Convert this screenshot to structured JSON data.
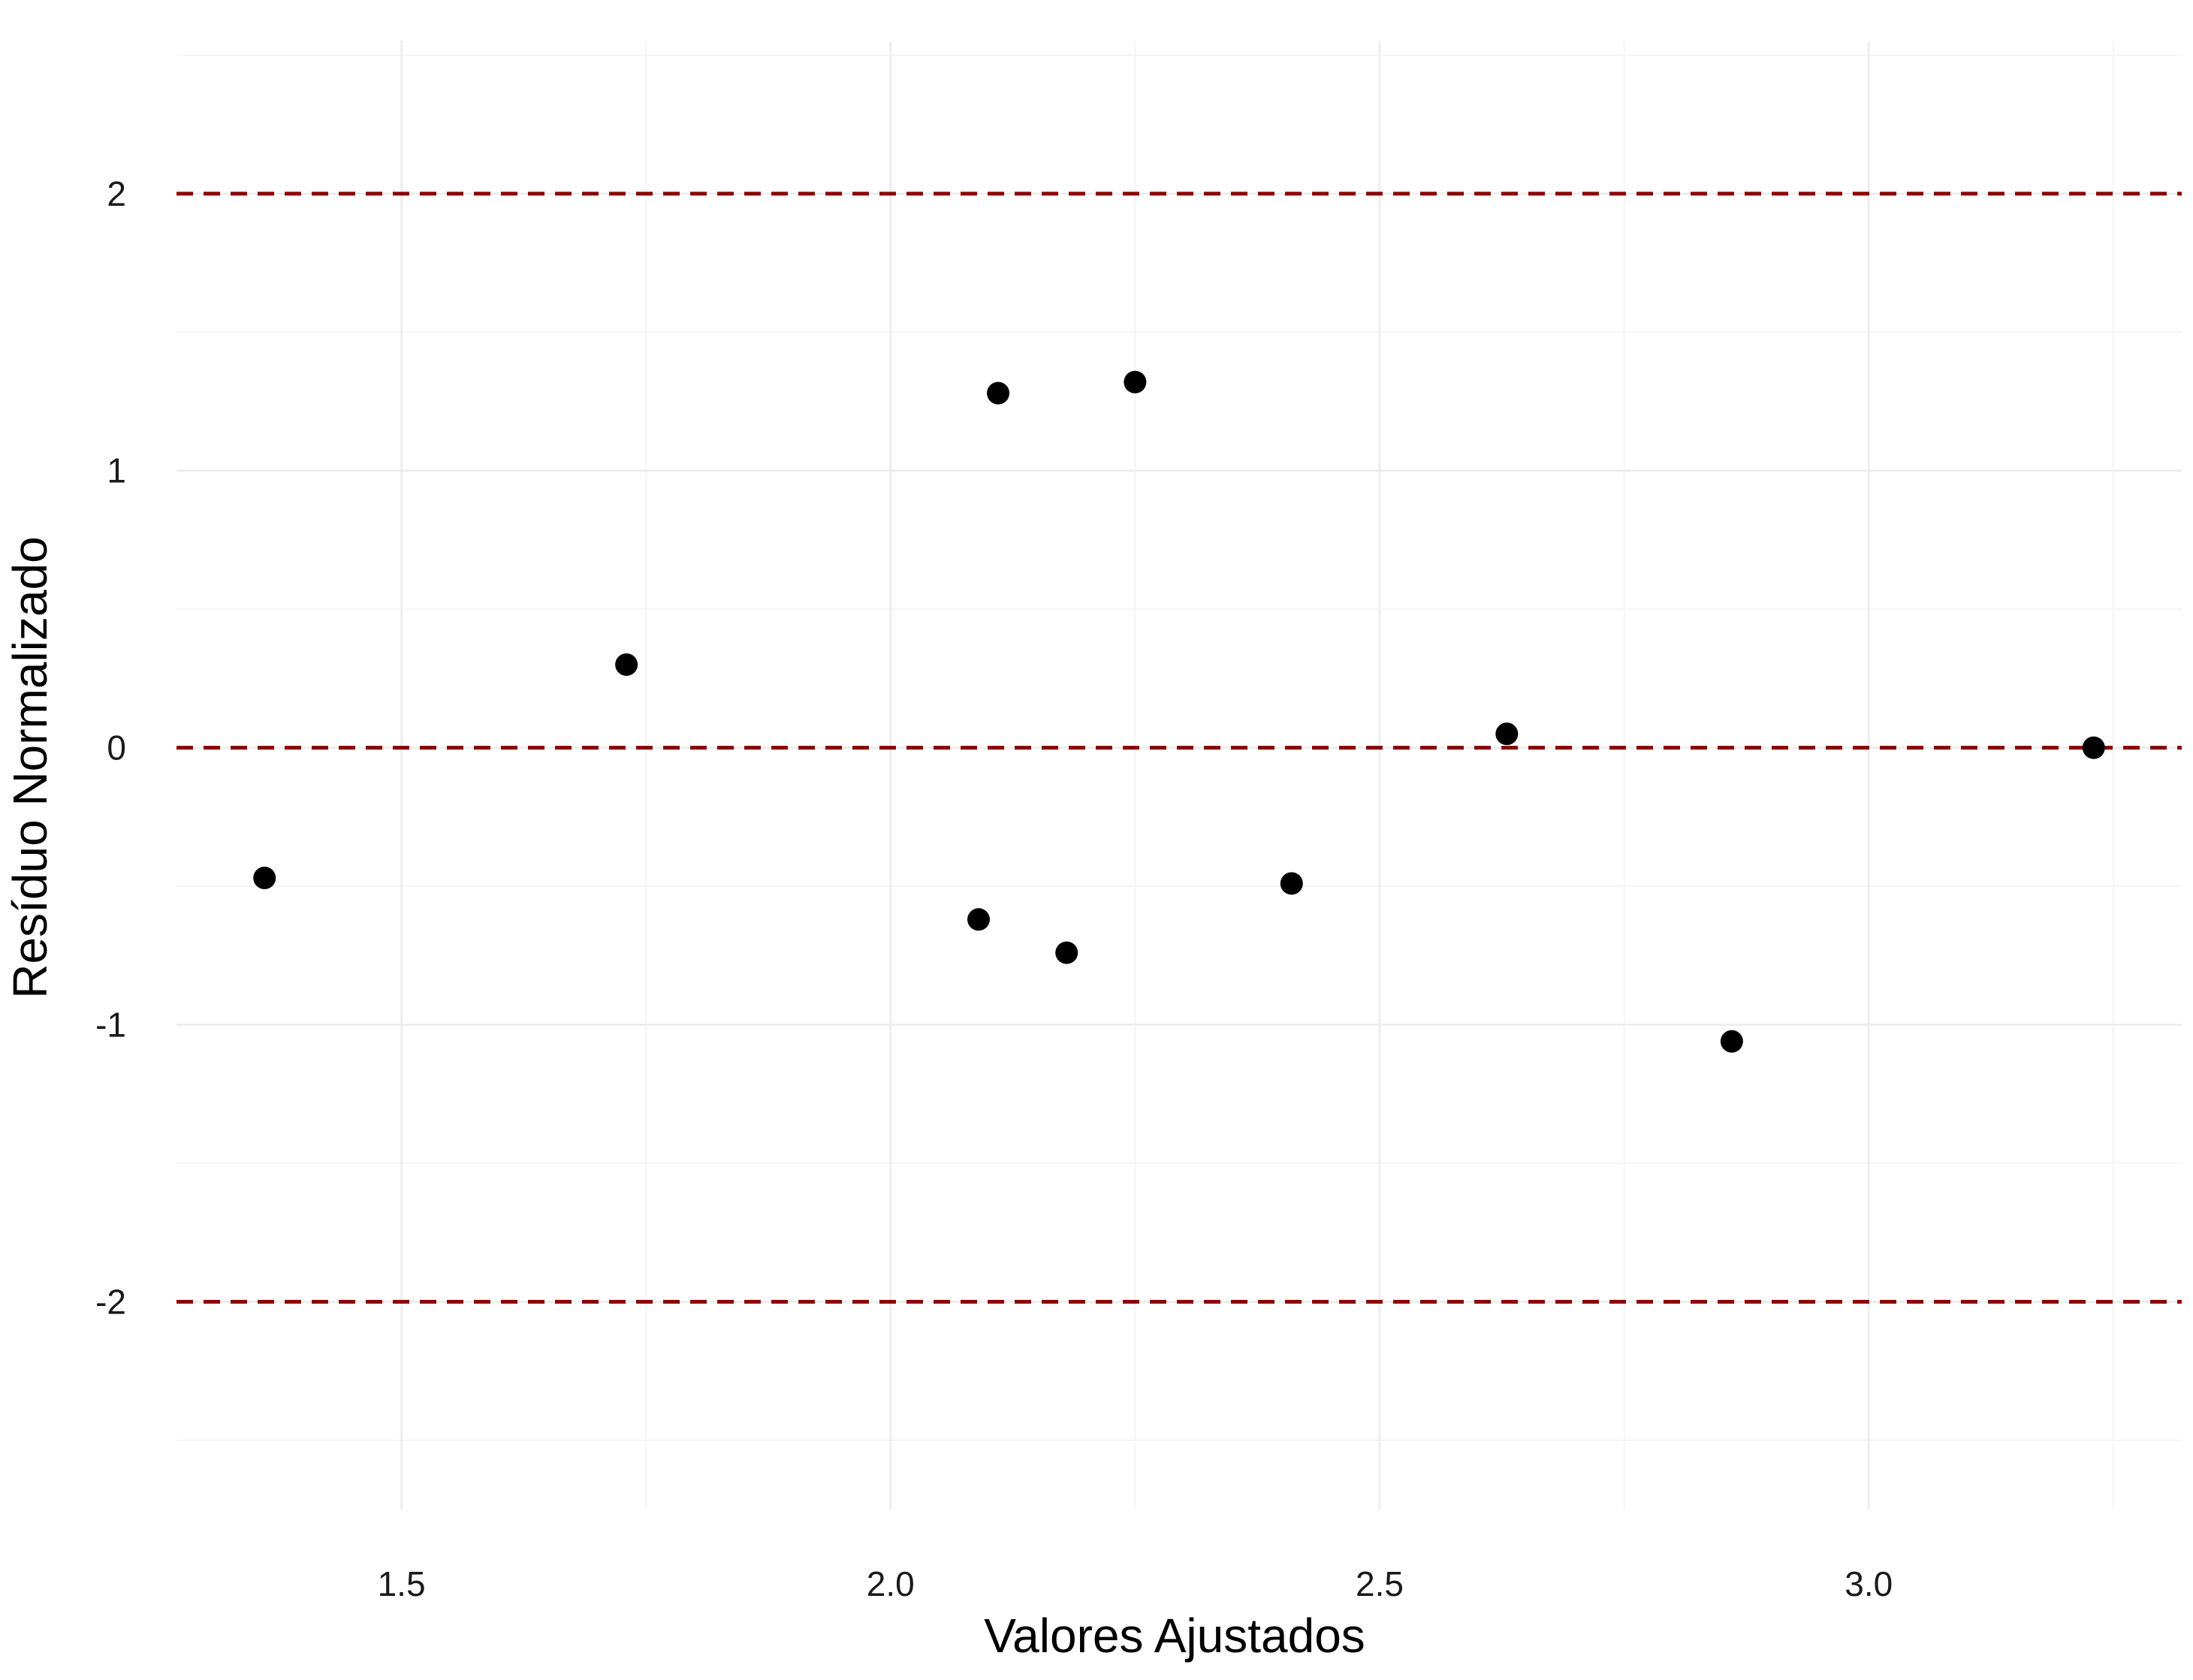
{
  "chart_data": {
    "type": "scatter",
    "title": "",
    "xlabel": "Valores Ajustados",
    "ylabel": "Resíduo Normalizado",
    "xlim": [
      1.27,
      3.32
    ],
    "ylim": [
      -2.75,
      2.55
    ],
    "x_ticks": [
      1.5,
      2.0,
      2.5,
      3.0
    ],
    "x_tick_labels": [
      "1.5",
      "2.0",
      "2.5",
      "3.0"
    ],
    "y_ticks": [
      -2,
      -1,
      0,
      1,
      2
    ],
    "y_tick_labels": [
      "-2",
      "-1",
      "0",
      "1",
      "2"
    ],
    "grid": true,
    "legend": "none",
    "reference_lines": [
      {
        "y": 2,
        "style": "dashed",
        "color": "#8b0000"
      },
      {
        "y": 0,
        "style": "dashed",
        "color": "#8b0000"
      },
      {
        "y": -2,
        "style": "dashed",
        "color": "#8b0000"
      }
    ],
    "point_color": "#000000",
    "points": [
      {
        "x": 1.36,
        "y": -0.47
      },
      {
        "x": 1.73,
        "y": 0.3
      },
      {
        "x": 2.09,
        "y": -0.62
      },
      {
        "x": 2.11,
        "y": 1.28
      },
      {
        "x": 2.18,
        "y": -0.74
      },
      {
        "x": 2.25,
        "y": 1.32
      },
      {
        "x": 2.41,
        "y": -0.49
      },
      {
        "x": 2.63,
        "y": 0.05
      },
      {
        "x": 2.86,
        "y": -1.06
      },
      {
        "x": 3.23,
        "y": 0.0
      }
    ]
  }
}
